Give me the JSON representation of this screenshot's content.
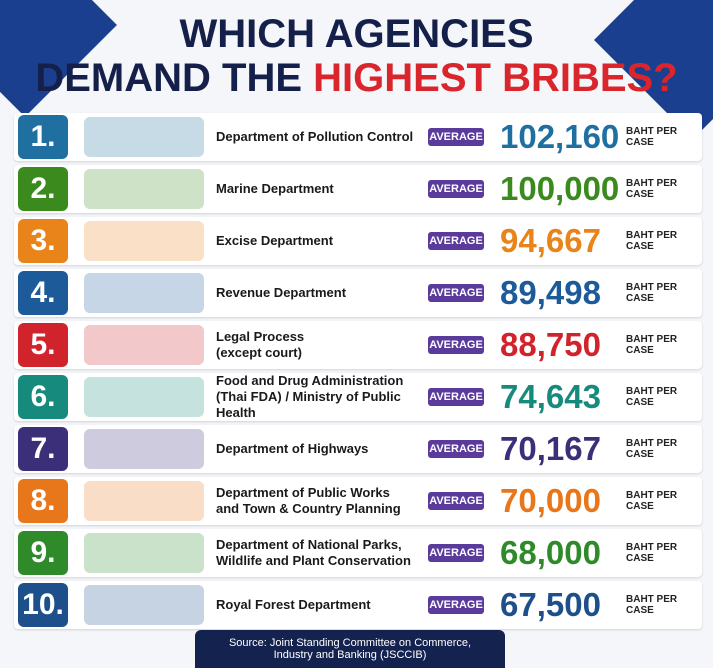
{
  "header": {
    "title_line1": "WHICH AGENCIES",
    "title_line2_a": "DEMAND THE",
    "title_line2_b": "HIGHEST BRIBES?"
  },
  "rows": [
    {
      "rank": "1.",
      "name": [
        "Department of Pollution Control"
      ],
      "badge": "AVERAGE",
      "amount": "102,160",
      "unit": "BAHT PER CASE",
      "color": "#1f6fa0"
    },
    {
      "rank": "2.",
      "name": [
        "Marine Department"
      ],
      "badge": "AVERAGE",
      "amount": "100,000",
      "unit": "BAHT PER CASE",
      "color": "#3a8a1e"
    },
    {
      "rank": "3.",
      "name": [
        "Excise Department"
      ],
      "badge": "AVERAGE",
      "amount": "94,667",
      "unit": "BAHT PER CASE",
      "color": "#e8841a"
    },
    {
      "rank": "4.",
      "name": [
        "Revenue Department"
      ],
      "badge": "AVERAGE",
      "amount": "89,498",
      "unit": "BAHT PER CASE",
      "color": "#1c5a9a"
    },
    {
      "rank": "5.",
      "name": [
        "Legal Process",
        "(except court)"
      ],
      "badge": "AVERAGE",
      "amount": "88,750",
      "unit": "BAHT PER CASE",
      "color": "#d0232b"
    },
    {
      "rank": "6.",
      "name": [
        "Food and Drug Administration",
        "(Thai FDA) / Ministry of Public Health"
      ],
      "badge": "AVERAGE",
      "amount": "74,643",
      "unit": "BAHT PER CASE",
      "color": "#178a7e"
    },
    {
      "rank": "7.",
      "name": [
        "Department of Highways"
      ],
      "badge": "AVERAGE",
      "amount": "70,167",
      "unit": "BAHT PER CASE",
      "color": "#3b2f7a"
    },
    {
      "rank": "8.",
      "name": [
        "Department of Public Works",
        "and Town & Country Planning"
      ],
      "badge": "AVERAGE",
      "amount": "70,000",
      "unit": "BAHT PER CASE",
      "color": "#e8761a"
    },
    {
      "rank": "9.",
      "name": [
        "Department of National Parks,",
        "Wildlife and Plant Conservation"
      ],
      "badge": "AVERAGE",
      "amount": "68,000",
      "unit": "BAHT PER CASE",
      "color": "#2f8a2a"
    },
    {
      "rank": "10.",
      "name": [
        "Royal Forest Department"
      ],
      "badge": "AVERAGE",
      "amount": "67,500",
      "unit": "BAHT PER CASE",
      "color": "#1d4f8a"
    }
  ],
  "source": [
    "Source: Joint Standing Committee on Commerce,",
    "Industry and Banking (JSCCIB)"
  ]
}
